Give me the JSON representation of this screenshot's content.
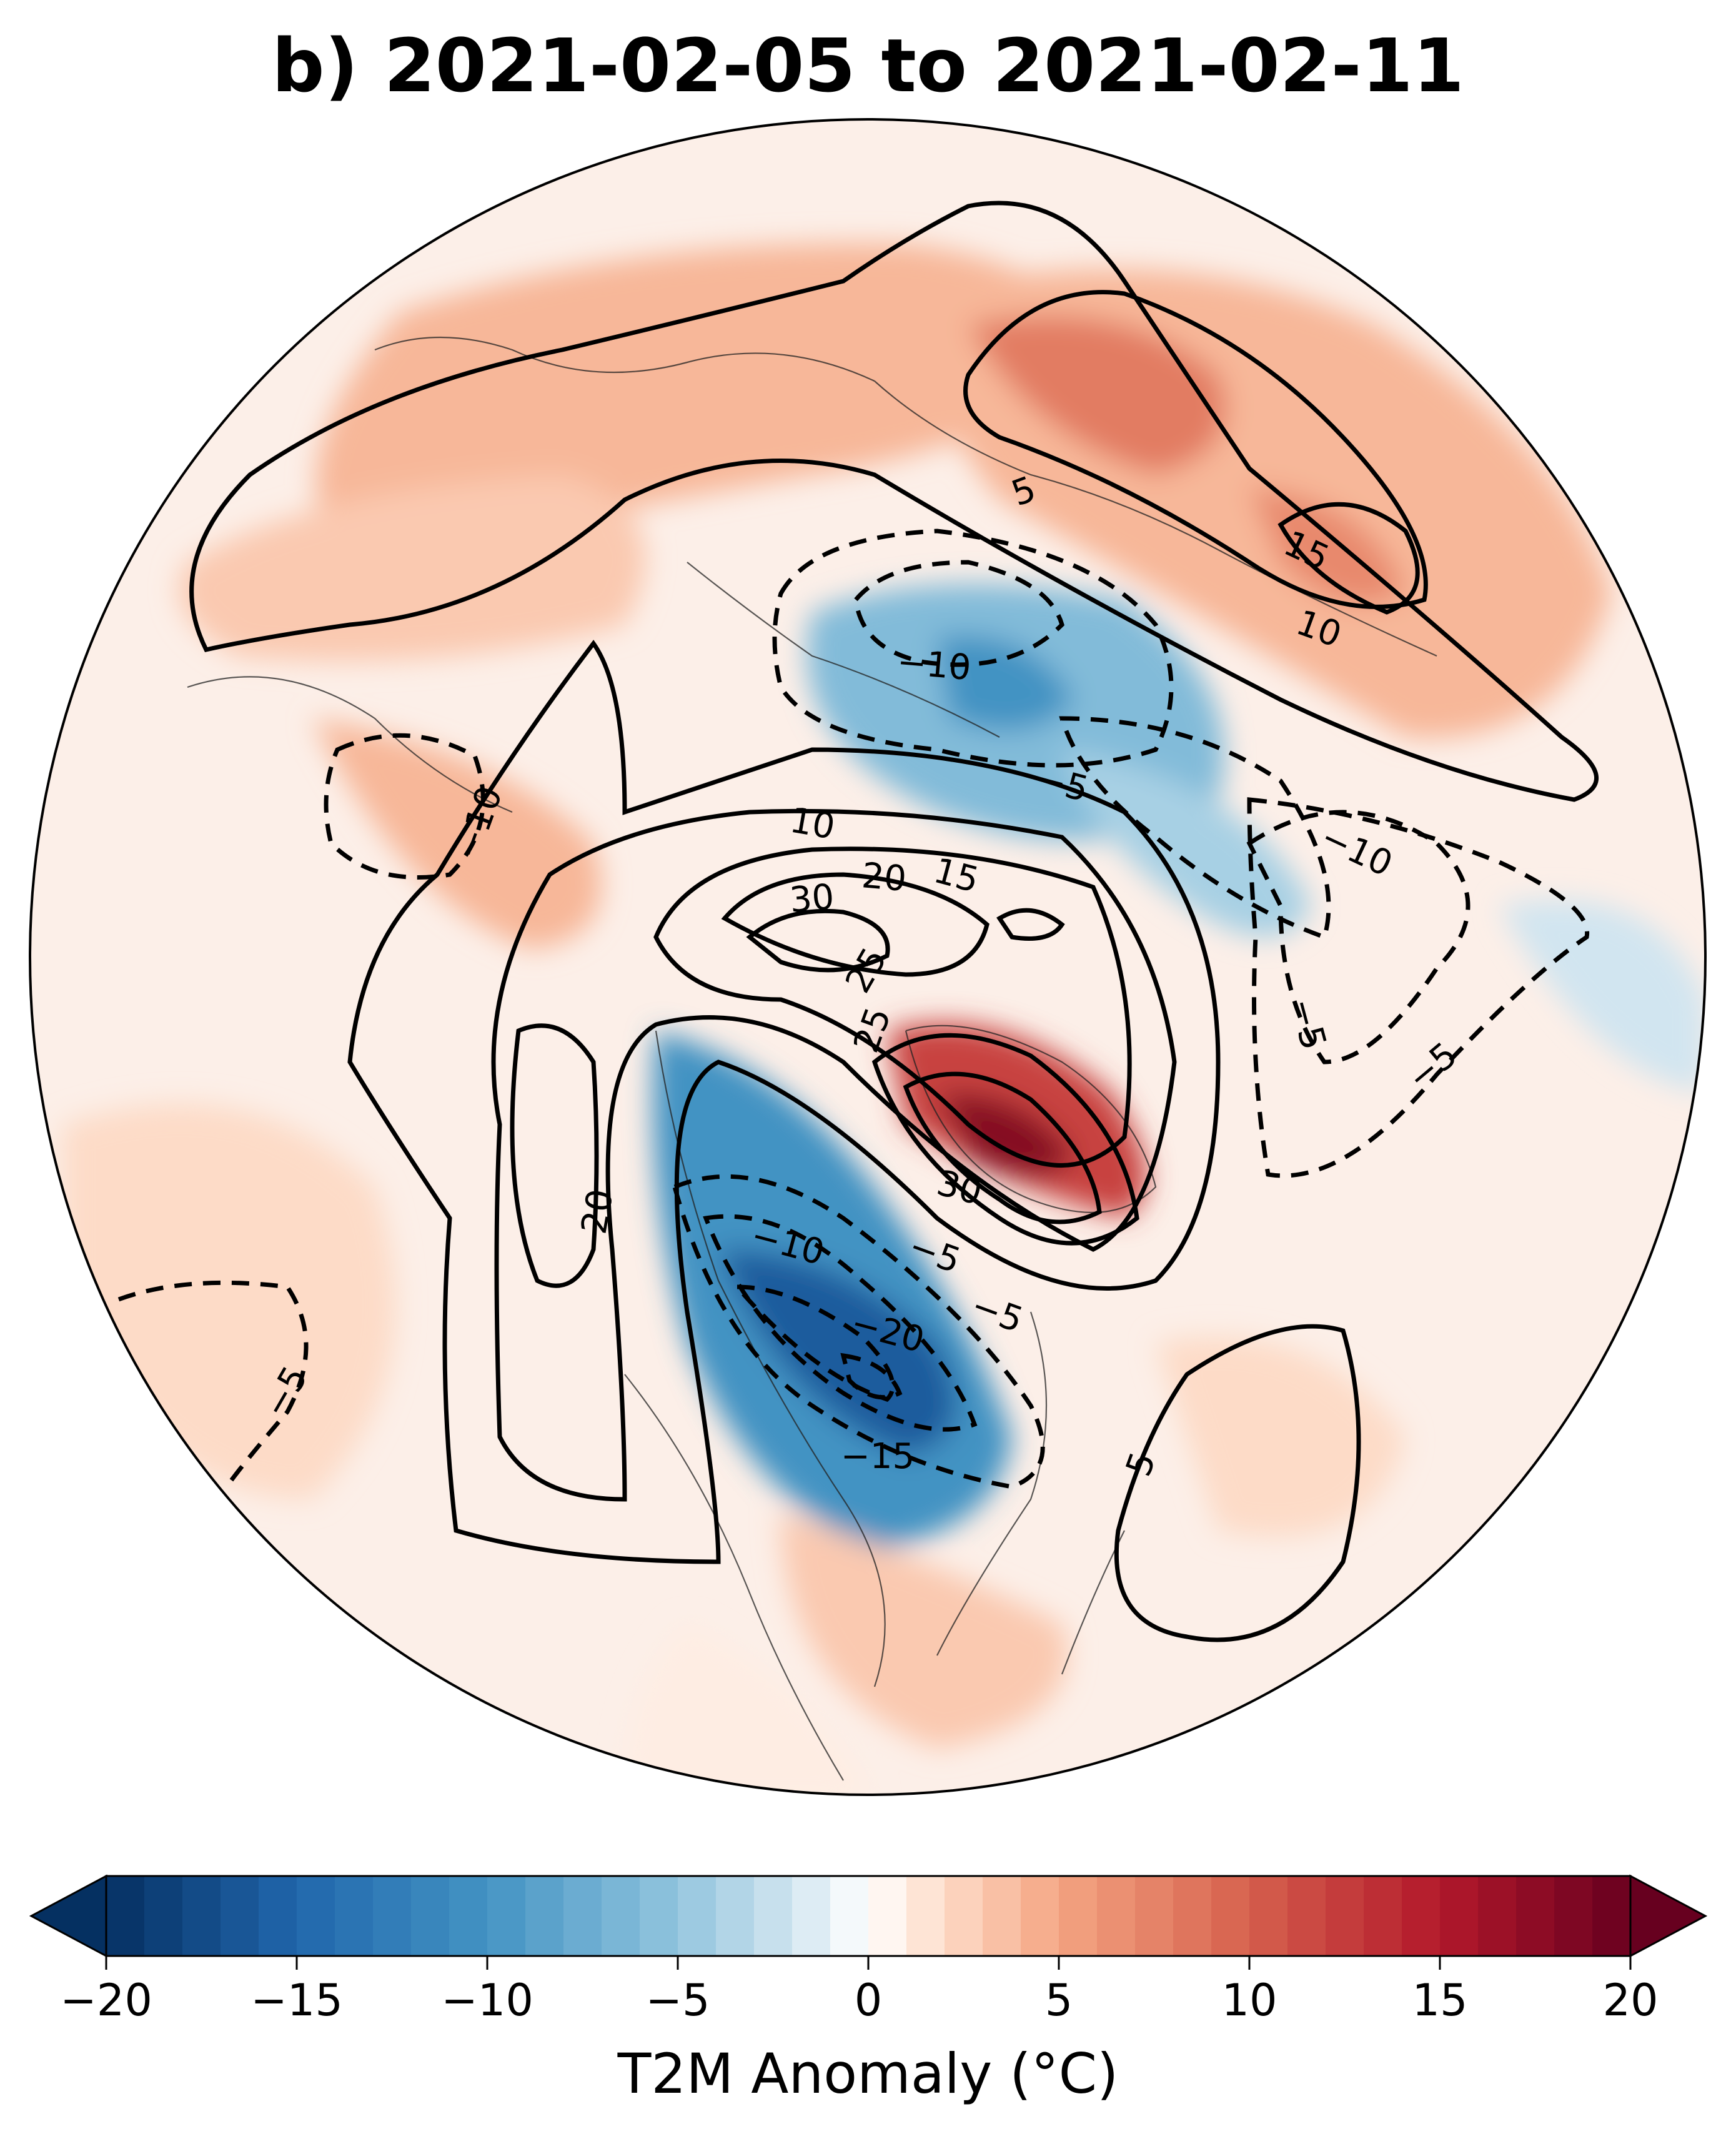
{
  "title": "b) 2021-02-05 to 2021-02-11",
  "colorbar": {
    "label": "T2M Anomaly (°C)",
    "ticks": [
      "−20",
      "−15",
      "−10",
      "−5",
      "0",
      "5",
      "10",
      "15",
      "20"
    ],
    "range": [
      -20,
      20
    ],
    "step": 1,
    "extend": "both",
    "colormap": "RdBu_r",
    "colors": {
      "cold_extreme": "#053061",
      "cold_mid": "#4393c3",
      "cold_light": "#d1e5f0",
      "neutral": "#ffffff",
      "warm_light": "#fddbc7",
      "warm_mid": "#d6604d",
      "warm_extreme": "#67001f"
    }
  },
  "map": {
    "projection": "north-polar-stereographic",
    "shading": "T2M anomaly (°C)",
    "contours": "solid positive, dashed negative",
    "contour_labels": [
      "5",
      "15",
      "10",
      "−10",
      "−5",
      "10",
      "20",
      "15",
      "30",
      "25",
      "25",
      "−5",
      "−10",
      "−10",
      "−5",
      "20",
      "30",
      "−10",
      "−5",
      "−5",
      "−20",
      "−15",
      "5",
      "−5"
    ]
  }
}
